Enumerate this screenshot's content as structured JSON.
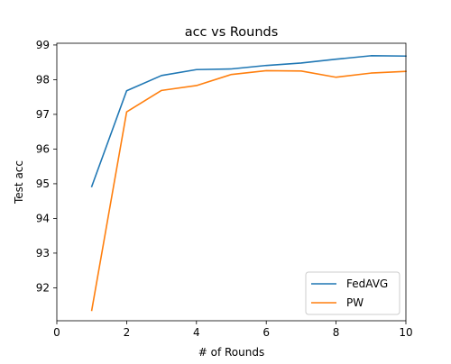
{
  "chart_data": {
    "type": "line",
    "title": "acc vs Rounds",
    "xlabel": "# of Rounds",
    "ylabel": "Test acc",
    "xlim": [
      0,
      10
    ],
    "ylim": [
      91.05,
      99.05
    ],
    "xticks": [
      0,
      2,
      4,
      6,
      8,
      10
    ],
    "yticks": [
      92,
      93,
      94,
      95,
      96,
      97,
      98,
      99
    ],
    "legend_position": "lower-right",
    "grid": false,
    "x": [
      1,
      2,
      3,
      4,
      5,
      6,
      7,
      8,
      9,
      10
    ],
    "series": [
      {
        "name": "FedAVG",
        "color": "#1f77b4",
        "values": [
          94.92,
          97.68,
          98.12,
          98.29,
          98.31,
          98.41,
          98.48,
          98.59,
          98.69,
          98.68
        ]
      },
      {
        "name": "PW",
        "color": "#ff7f0e",
        "values": [
          91.35,
          97.07,
          97.69,
          97.83,
          98.15,
          98.26,
          98.25,
          98.07,
          98.19,
          98.24
        ]
      }
    ]
  }
}
